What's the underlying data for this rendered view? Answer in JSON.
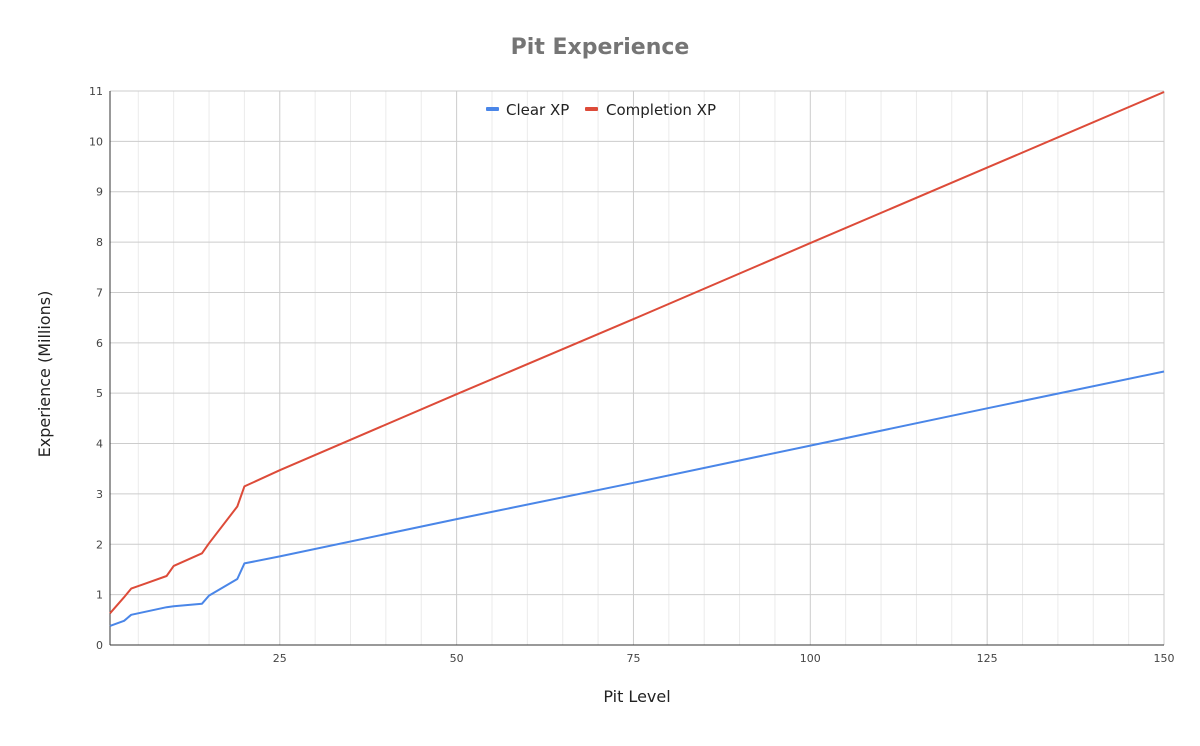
{
  "chart_data": {
    "type": "line",
    "title": "Pit Experience",
    "xlabel": "Pit Level",
    "ylabel": "Experience (Millions)",
    "xlim": [
      1,
      150
    ],
    "ylim": [
      0,
      11
    ],
    "x_ticks": [
      25,
      50,
      75,
      100,
      125,
      150
    ],
    "y_ticks": [
      0,
      1,
      2,
      3,
      4,
      5,
      6,
      7,
      8,
      9,
      10,
      11
    ],
    "grid": true,
    "legend_position": "top",
    "series": [
      {
        "name": "Clear XP",
        "color": "#4a86e8",
        "points": [
          [
            1,
            0.38
          ],
          [
            3,
            0.48
          ],
          [
            4,
            0.6
          ],
          [
            9,
            0.75
          ],
          [
            10,
            0.77
          ],
          [
            14,
            0.82
          ],
          [
            15,
            0.98
          ],
          [
            19,
            1.31
          ],
          [
            20,
            1.62
          ],
          [
            25,
            1.76
          ],
          [
            50,
            2.5
          ],
          [
            75,
            3.22
          ],
          [
            100,
            3.96
          ],
          [
            125,
            4.7
          ],
          [
            150,
            5.43
          ]
        ]
      },
      {
        "name": "Completion XP",
        "color": "#dd4b39",
        "points": [
          [
            1,
            0.63
          ],
          [
            3,
            0.95
          ],
          [
            4,
            1.12
          ],
          [
            6,
            1.22
          ],
          [
            9,
            1.37
          ],
          [
            10,
            1.57
          ],
          [
            14,
            1.82
          ],
          [
            15,
            2.02
          ],
          [
            19,
            2.75
          ],
          [
            20,
            3.15
          ],
          [
            25,
            3.47
          ],
          [
            50,
            4.98
          ],
          [
            75,
            6.47
          ],
          [
            100,
            7.98
          ],
          [
            125,
            9.48
          ],
          [
            150,
            10.98
          ]
        ]
      }
    ]
  }
}
